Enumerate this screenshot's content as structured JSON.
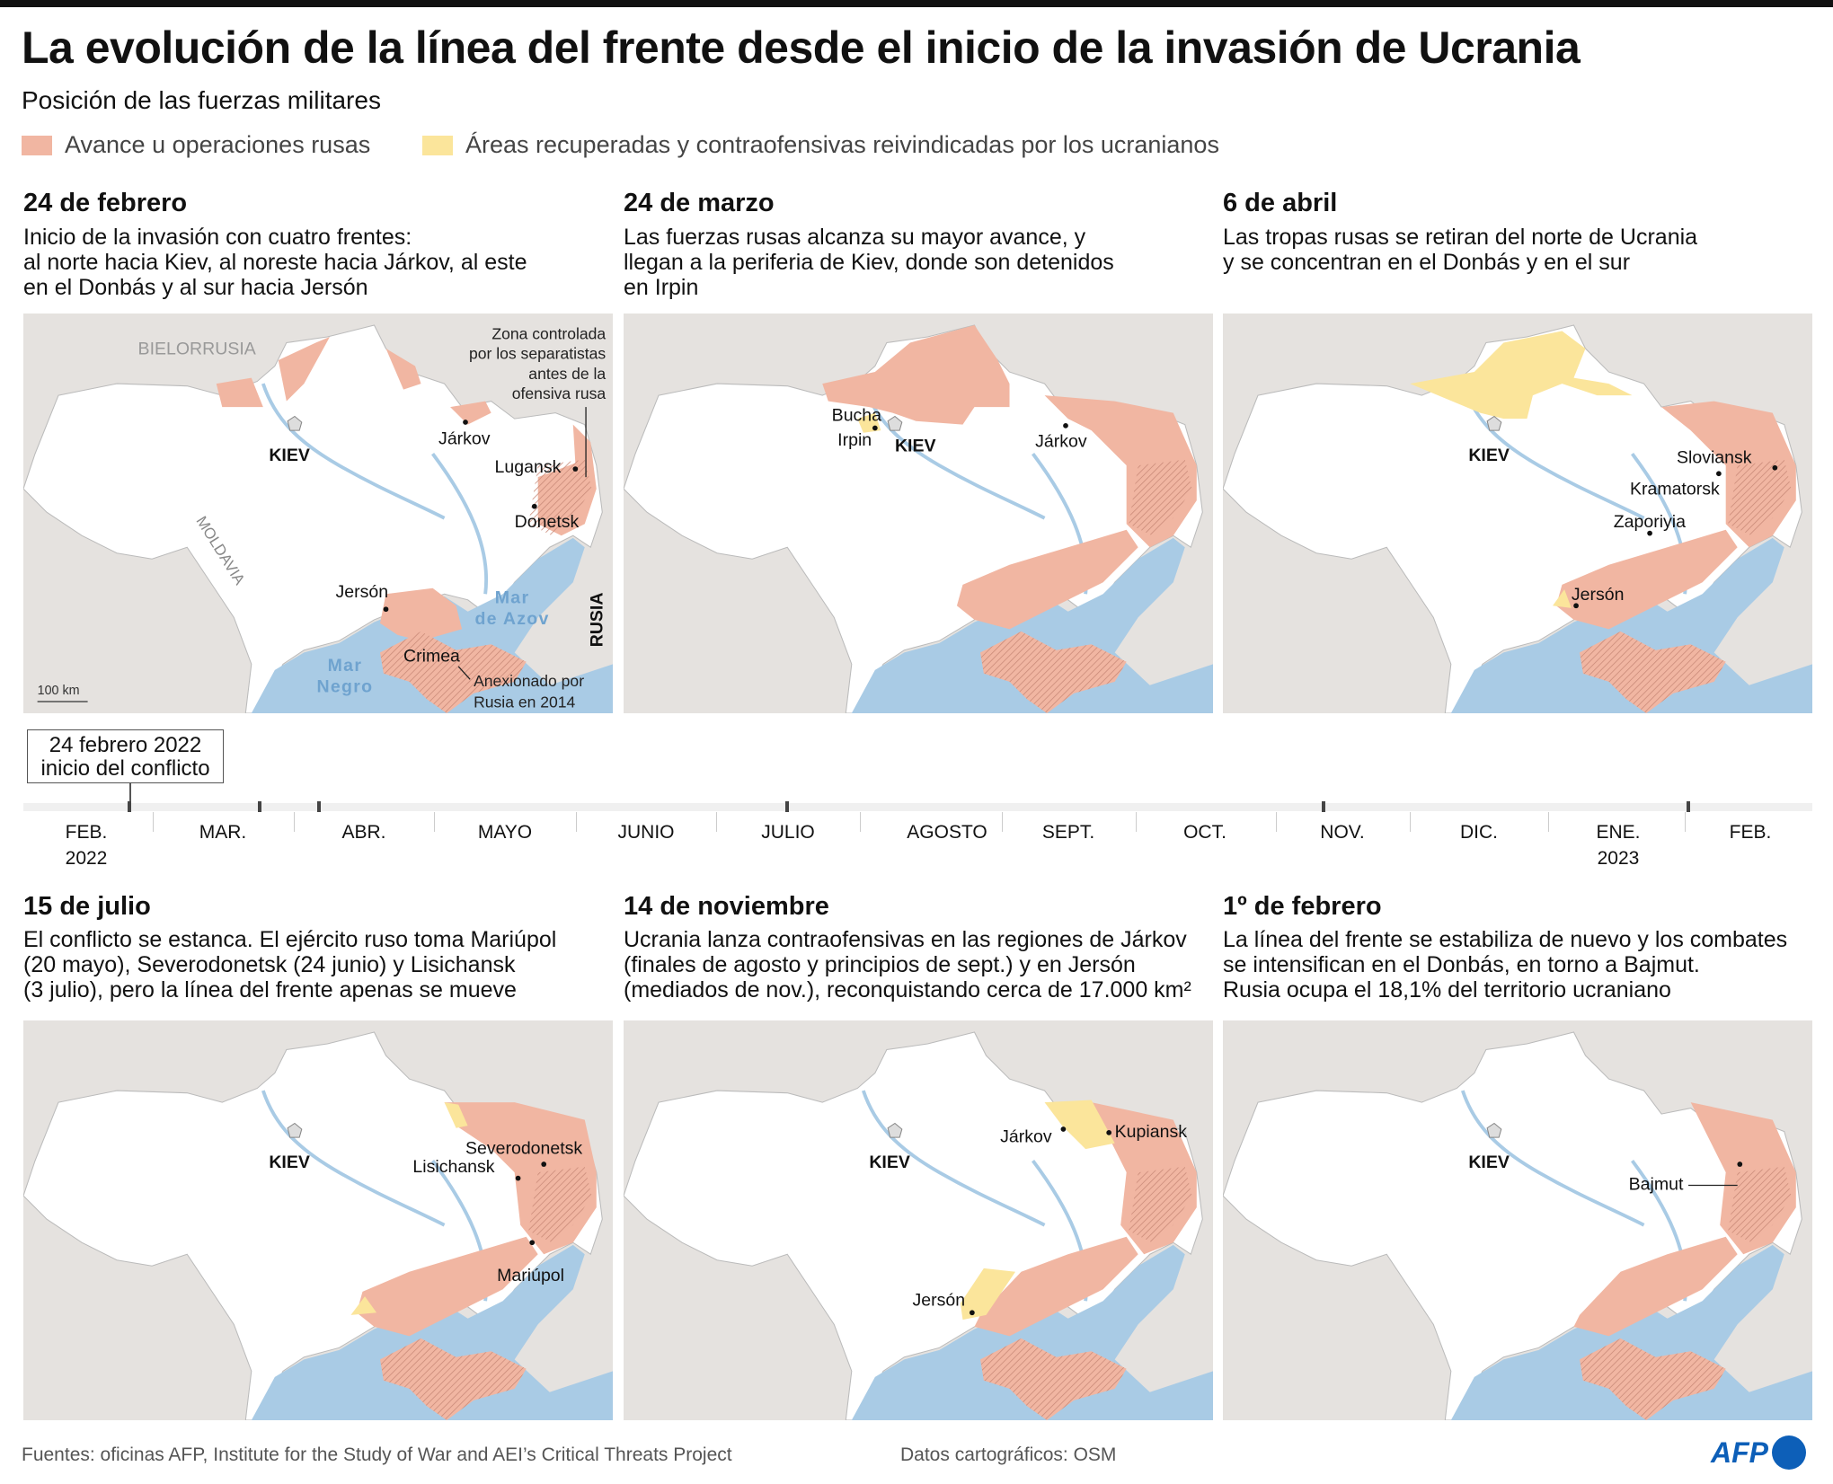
{
  "title": "La evolución de la línea del frente desde el inicio de la invasión de Ucrania",
  "subtitle": "Posición de las fuerzas militares",
  "legend": [
    {
      "label": "Avance u operaciones rusas",
      "color": "#f1b6a2"
    },
    {
      "label": "Áreas recuperadas y contraofensivas reivindicadas por los ucranianos",
      "color": "#fbe59b"
    }
  ],
  "colors": {
    "russian": "#f1b6a2",
    "ukrainian": "#fbe59b",
    "sea": "#a9cbe5",
    "land": "#e5e2df",
    "ukraine": "#ffffff",
    "hatch": "#c98a78"
  },
  "panels": [
    {
      "title": "24 de febrero",
      "desc": [
        "Inicio de la invasión con cuatro frentes:",
        "al norte hacia Kiev, al noreste hacia Járkov, al este",
        "en el Donbás y al sur hacia Jersón"
      ],
      "labels": [
        "BIELORRUSIA",
        "KIEV",
        "Járkov",
        "Lugansk",
        "Donetsk",
        "Jersón",
        "Mar",
        "de Azov",
        "RUSIA",
        "Crimea",
        "Mar",
        "Negro",
        "MOLDAVIA",
        "Zona controlada",
        "por los separatistas",
        "antes de la",
        "ofensiva rusa",
        "Anexionado por",
        "Rusia en 2014",
        "100 km"
      ]
    },
    {
      "title": "24 de marzo",
      "desc": [
        "Las fuerzas rusas alcanza su mayor avance, y",
        "llegan a la periferia de Kiev, donde son detenidos",
        "en Irpin"
      ],
      "labels": [
        "Bucha",
        "Irpin",
        "KIEV",
        "Járkov"
      ]
    },
    {
      "title": "6 de abril",
      "desc": [
        "Las tropas rusas se retiran del norte de Ucrania",
        "y se concentran en el Donbás y en el sur"
      ],
      "labels": [
        "KIEV",
        "Sloviansk",
        "Kramatorsk",
        "Zaporiyia",
        "Jersón"
      ]
    },
    {
      "title": "15 de julio",
      "desc": [
        "El conflicto se estanca. El ejército ruso toma Mariúpol",
        "(20 mayo), Severodonetsk (24 junio) y Lisichansk",
        "(3 julio), pero la línea del frente apenas se mueve"
      ],
      "labels": [
        "KIEV",
        "Severodonetsk",
        "Lisichansk",
        "Mariúpol"
      ]
    },
    {
      "title": "14 de noviembre",
      "desc": [
        "Ucrania lanza contraofensivas en las regiones de Járkov",
        "(finales de agosto y principios de sept.) y en Jersón",
        "(mediados de nov.), reconquistando cerca de 17.000 km²"
      ],
      "labels": [
        "Járkov",
        "Kupiansk",
        "KIEV",
        "Jersón"
      ]
    },
    {
      "title": "1º de febrero",
      "desc": [
        "La línea del frente se estabiliza de nuevo y los combates",
        "se intensifican en el Donbás, en torno a Bajmut.",
        "Rusia ocupa el 18,1% del territorio ucraniano"
      ],
      "labels": [
        "KIEV",
        "Bajmut"
      ]
    }
  ],
  "timeline": {
    "callout": [
      "24 febrero 2022",
      "inicio del conflicto"
    ],
    "months": [
      "FEB.",
      "MAR.",
      "ABR.",
      "MAYO",
      "JUNIO",
      "JULIO",
      "AGOSTO",
      "SEPT.",
      "OCT.",
      "NOV.",
      "DIC.",
      "ENE.",
      "FEB."
    ],
    "years": {
      "0": "2022",
      "11": "2023"
    },
    "year_start": "2022",
    "year_end": "2023"
  },
  "footer": {
    "sources": "Fuentes: oficinas AFP, Institute for the Study of War and AEI’s Critical Threats Project",
    "carto": "Datos cartográficos: OSM",
    "logo": "AFP"
  }
}
